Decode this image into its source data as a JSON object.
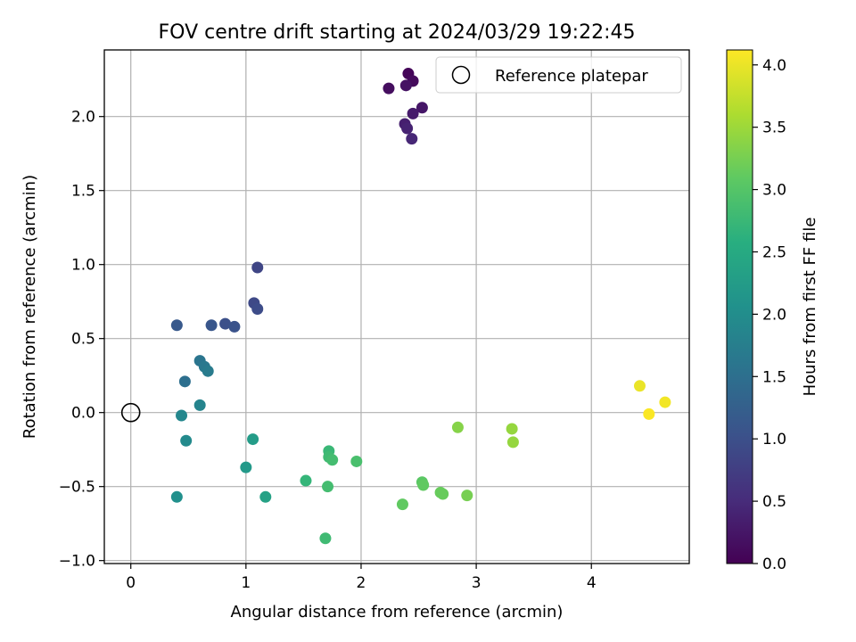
{
  "chart_data": {
    "type": "scatter",
    "title": "FOV centre drift starting at 2024/03/29 19:22:45",
    "xlabel": "Angular distance from reference (arcmin)",
    "ylabel": "Rotation from reference (arcmin)",
    "xlim": [
      -0.23,
      4.85
    ],
    "ylim": [
      -1.02,
      2.45
    ],
    "xticks": [
      "0",
      "1",
      "2",
      "3",
      "4"
    ],
    "yticks": [
      "−1.0",
      "−0.5",
      "0.0",
      "0.5",
      "1.0",
      "1.5",
      "2.0"
    ],
    "grid": true,
    "legend": {
      "placement": "top-right",
      "entries": [
        "Reference platepar"
      ]
    },
    "reference_point": {
      "x": 0.0,
      "y": 0.0
    },
    "colorbar": {
      "label": "Hours from first FF file",
      "colormap": "viridis",
      "range": [
        0.0,
        4.12
      ],
      "ticks": [
        "0.0",
        "0.5",
        "1.0",
        "1.5",
        "2.0",
        "2.5",
        "3.0",
        "3.5",
        "4.0"
      ]
    },
    "points": [
      {
        "x": 2.41,
        "y": 2.29,
        "hours": 0.05
      },
      {
        "x": 2.45,
        "y": 2.24,
        "hours": 0.1
      },
      {
        "x": 2.24,
        "y": 2.19,
        "hours": 0.15
      },
      {
        "x": 2.39,
        "y": 2.21,
        "hours": 0.2
      },
      {
        "x": 2.53,
        "y": 2.06,
        "hours": 0.25
      },
      {
        "x": 2.45,
        "y": 2.02,
        "hours": 0.3
      },
      {
        "x": 2.38,
        "y": 1.95,
        "hours": 0.35
      },
      {
        "x": 2.4,
        "y": 1.92,
        "hours": 0.4
      },
      {
        "x": 2.44,
        "y": 1.85,
        "hours": 0.45
      },
      {
        "x": 1.1,
        "y": 0.98,
        "hours": 0.85
      },
      {
        "x": 1.07,
        "y": 0.74,
        "hours": 0.9
      },
      {
        "x": 1.1,
        "y": 0.7,
        "hours": 0.95
      },
      {
        "x": 0.82,
        "y": 0.6,
        "hours": 1.0
      },
      {
        "x": 0.9,
        "y": 0.58,
        "hours": 1.05
      },
      {
        "x": 0.7,
        "y": 0.59,
        "hours": 1.1
      },
      {
        "x": 0.4,
        "y": 0.59,
        "hours": 1.15
      },
      {
        "x": 0.47,
        "y": 0.21,
        "hours": 1.5
      },
      {
        "x": 0.6,
        "y": 0.35,
        "hours": 1.6
      },
      {
        "x": 0.64,
        "y": 0.31,
        "hours": 1.65
      },
      {
        "x": 0.67,
        "y": 0.28,
        "hours": 1.7
      },
      {
        "x": 0.6,
        "y": 0.05,
        "hours": 1.85
      },
      {
        "x": 0.44,
        "y": -0.02,
        "hours": 1.9
      },
      {
        "x": 0.48,
        "y": -0.19,
        "hours": 1.95
      },
      {
        "x": 0.4,
        "y": -0.57,
        "hours": 2.05
      },
      {
        "x": 1.0,
        "y": -0.37,
        "hours": 2.2
      },
      {
        "x": 1.06,
        "y": -0.18,
        "hours": 2.25
      },
      {
        "x": 1.17,
        "y": -0.57,
        "hours": 2.35
      },
      {
        "x": 1.52,
        "y": -0.46,
        "hours": 2.7
      },
      {
        "x": 1.72,
        "y": -0.26,
        "hours": 2.75
      },
      {
        "x": 1.72,
        "y": -0.3,
        "hours": 2.8
      },
      {
        "x": 1.75,
        "y": -0.32,
        "hours": 2.85
      },
      {
        "x": 1.71,
        "y": -0.5,
        "hours": 2.85
      },
      {
        "x": 1.69,
        "y": -0.85,
        "hours": 2.8
      },
      {
        "x": 1.96,
        "y": -0.33,
        "hours": 2.9
      },
      {
        "x": 2.36,
        "y": -0.62,
        "hours": 3.1
      },
      {
        "x": 2.53,
        "y": -0.47,
        "hours": 3.05
      },
      {
        "x": 2.54,
        "y": -0.49,
        "hours": 3.1
      },
      {
        "x": 2.69,
        "y": -0.54,
        "hours": 3.15
      },
      {
        "x": 2.71,
        "y": -0.55,
        "hours": 3.15
      },
      {
        "x": 2.92,
        "y": -0.56,
        "hours": 3.25
      },
      {
        "x": 2.84,
        "y": -0.1,
        "hours": 3.35
      },
      {
        "x": 3.31,
        "y": -0.11,
        "hours": 3.45
      },
      {
        "x": 3.32,
        "y": -0.2,
        "hours": 3.45
      },
      {
        "x": 4.42,
        "y": 0.18,
        "hours": 4.0
      },
      {
        "x": 4.64,
        "y": 0.07,
        "hours": 4.05
      },
      {
        "x": 4.5,
        "y": -0.01,
        "hours": 4.1
      }
    ]
  }
}
